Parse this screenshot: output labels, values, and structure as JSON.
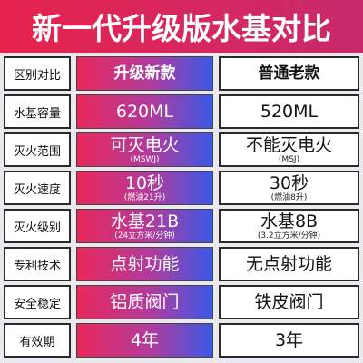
{
  "banner": {
    "title": "新一代升级版水基对比"
  },
  "table": {
    "header": {
      "label": "区别对比",
      "new": "升级新款",
      "old": "普通老款"
    },
    "rows": [
      {
        "label": "水基容量",
        "new": "620ML",
        "new_sub": "",
        "old": "520ML",
        "old_sub": ""
      },
      {
        "label": "灭火范围",
        "new": "可灭电火",
        "new_sub": "(MSWJ)",
        "old": "不能灭电火",
        "old_sub": "(MSJ)"
      },
      {
        "label": "灭火速度",
        "new": "10秒",
        "new_sub": "(燃油21升)",
        "old": "30秒",
        "old_sub": "(燃油8升)"
      },
      {
        "label": "灭火级别",
        "new": "水基21B",
        "new_sub": "(24立方米/分钟)",
        "old": "水基8B",
        "old_sub": "(3.2立方米/分钟)"
      },
      {
        "label": "专利技术",
        "new": "点射功能",
        "new_sub": "",
        "old": "无点射功能",
        "old_sub": ""
      },
      {
        "label": "安全稳定",
        "new": "铝质阀门",
        "new_sub": "",
        "old": "铁皮阀门",
        "old_sub": ""
      },
      {
        "label": "有效期",
        "new": "4年",
        "new_sub": "",
        "old": "3年",
        "old_sub": ""
      }
    ]
  },
  "colors": {
    "banner": "#e6234c",
    "gradient_start": "#e8285a",
    "gradient_end": "#3a58e6",
    "background": "#e9e9ee"
  }
}
